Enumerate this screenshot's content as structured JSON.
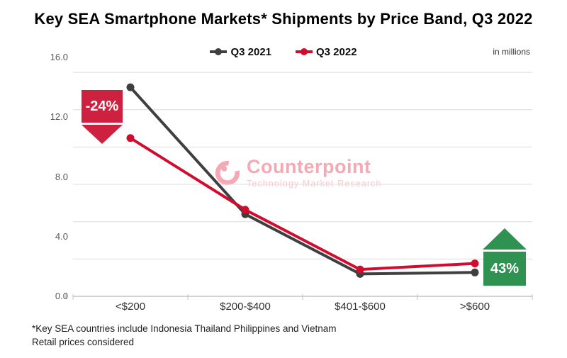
{
  "title": "Key SEA Smartphone Markets* Shipments by Price Band, Q3 2022",
  "units_label": "in millions",
  "chart_data": {
    "type": "line",
    "title": "Key SEA Smartphone Markets* Shipments by Price Band, Q3 2022",
    "categories": [
      "<$200",
      "$200-$400",
      "$401-$600",
      ">$600"
    ],
    "series": [
      {
        "name": "Q3 2021",
        "color": "#3f3f3f",
        "values": [
          14.0,
          5.5,
          1.5,
          1.6
        ]
      },
      {
        "name": "Q3 2022",
        "color": "#d10c2f",
        "values": [
          10.6,
          5.8,
          1.8,
          2.2
        ]
      }
    ],
    "xlabel": "",
    "ylabel": "",
    "ylim": [
      0,
      16
    ],
    "yticks": [
      {
        "value": 0,
        "label": "0.0"
      },
      {
        "value": 4,
        "label": "4.0"
      },
      {
        "value": 8,
        "label": "8.0"
      },
      {
        "value": 12,
        "label": "12.0"
      },
      {
        "value": 16,
        "label": "16.0"
      }
    ],
    "gridlines_at": [
      2.5,
      5.0,
      7.5,
      10.0,
      12.5,
      15.0
    ],
    "grid": true,
    "legend_position": "top-center",
    "grid_color": "#dcdcdc",
    "axis_color": "#c4c4c4"
  },
  "annotations": [
    {
      "text": "-24%",
      "direction": "down",
      "applies_to": "<$200",
      "color": "#ce2140"
    },
    {
      "text": "43%",
      "direction": "up",
      "applies_to": ">$600",
      "color": "#2f9251"
    }
  ],
  "watermark": {
    "brand": "Counterpoint",
    "tagline": "Technology Market Research",
    "color": "#f4a9b4"
  },
  "footnotes": [
    "*Key SEA countries include Indonesia Thailand Philippines and Vietnam",
    "Retail prices considered"
  ]
}
